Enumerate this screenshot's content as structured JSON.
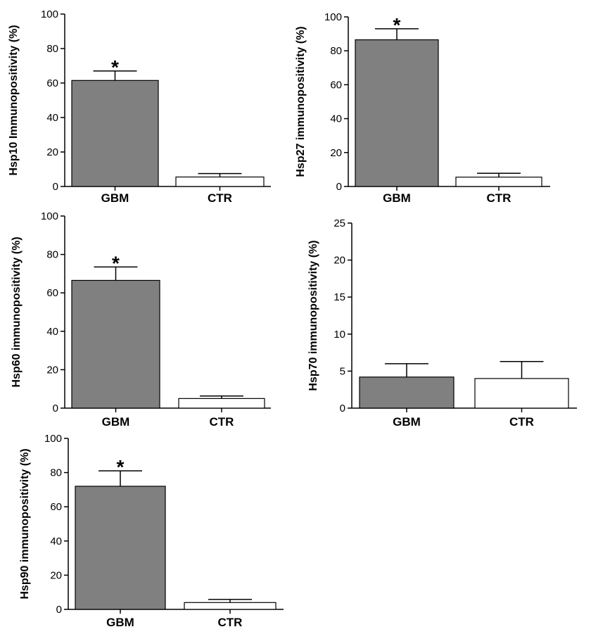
{
  "colors": {
    "gbm_bar": "#808080",
    "ctr_bar": "#ffffff",
    "axis": "#000000"
  },
  "chart_data": [
    {
      "type": "bar",
      "categories": [
        "GBM",
        "CTR"
      ],
      "values": [
        61.5,
        5.5
      ],
      "errors": [
        5.5,
        2.0
      ],
      "significance": [
        "*",
        ""
      ],
      "ylabel": "Hsp10 Immunopositivity (%)",
      "ylim": [
        0,
        100
      ],
      "yticks": [
        "0",
        "20",
        "40",
        "60",
        "80",
        "100"
      ],
      "grid": false
    },
    {
      "type": "bar",
      "categories": [
        "GBM",
        "CTR"
      ],
      "values": [
        86.5,
        5.5
      ],
      "errors": [
        6.5,
        2.3
      ],
      "significance": [
        "*",
        ""
      ],
      "ylabel": "Hsp27 immunopositivity (%)",
      "ylim": [
        0,
        100
      ],
      "yticks": [
        "0",
        "20",
        "40",
        "60",
        "80",
        "100"
      ],
      "grid": false
    },
    {
      "type": "bar",
      "categories": [
        "GBM",
        "CTR"
      ],
      "values": [
        66.5,
        5.0
      ],
      "errors": [
        7.0,
        1.3
      ],
      "significance": [
        "*",
        ""
      ],
      "ylabel": "Hsp60 immunopositivity (%)",
      "ylim": [
        0,
        100
      ],
      "yticks": [
        "0",
        "20",
        "40",
        "60",
        "80",
        "100"
      ],
      "grid": false
    },
    {
      "type": "bar",
      "categories": [
        "GBM",
        "CTR"
      ],
      "values": [
        4.2,
        4.0
      ],
      "errors": [
        1.8,
        2.3
      ],
      "significance": [
        "",
        ""
      ],
      "ylabel": "Hsp70 immunopositivity (%)",
      "ylim": [
        0,
        25
      ],
      "yticks": [
        "0",
        "5",
        "10",
        "15",
        "20",
        "25"
      ],
      "grid": false
    },
    {
      "type": "bar",
      "categories": [
        "GBM",
        "CTR"
      ],
      "values": [
        72.0,
        4.0
      ],
      "errors": [
        9.0,
        1.8
      ],
      "significance": [
        "*",
        ""
      ],
      "ylabel": "Hsp90 immunopositivity (%)",
      "ylim": [
        0,
        100
      ],
      "yticks": [
        "0",
        "20",
        "40",
        "60",
        "80",
        "100"
      ],
      "grid": false
    }
  ]
}
